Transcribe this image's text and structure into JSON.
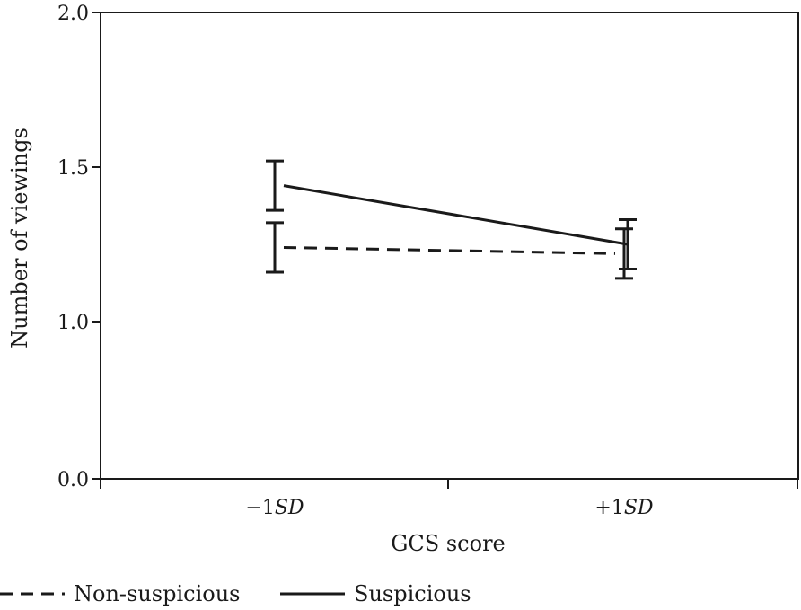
{
  "chart_data": {
    "type": "line",
    "categories": [
      {
        "prefix": "−1",
        "italic": "SD"
      },
      {
        "prefix": "+1",
        "italic": "SD"
      }
    ],
    "series": [
      {
        "name": "Non-suspicious",
        "values": [
          1.24,
          1.22
        ],
        "error_low": [
          1.16,
          1.14
        ],
        "error_high": [
          1.32,
          1.3
        ],
        "dash": "dashed",
        "color": "#1a1a1a"
      },
      {
        "name": "Suspicious",
        "values": [
          1.44,
          1.25
        ],
        "error_low": [
          1.36,
          1.17
        ],
        "error_high": [
          1.52,
          1.33
        ],
        "dash": "solid",
        "color": "#1a1a1a"
      }
    ],
    "xlabel": "GCS score",
    "ylabel": "Number of viewings",
    "yticks": [
      {
        "value": 0.0,
        "label": "0.0"
      },
      {
        "value": 1.0,
        "label": "1.0"
      },
      {
        "value": 1.5,
        "label": "1.5"
      },
      {
        "value": 2.0,
        "label": "2.0"
      }
    ],
    "axis_break": true,
    "legend_position": "bottom-left",
    "grid": false
  }
}
